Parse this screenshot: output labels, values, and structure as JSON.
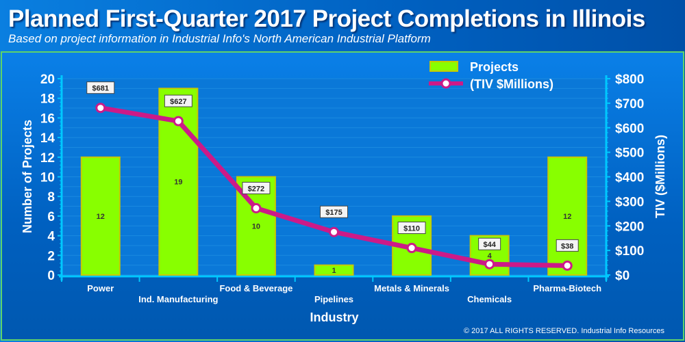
{
  "header": {
    "title": "Planned First-Quarter 2017 Project Completions in Illinois",
    "subtitle": "Based on project information in Industrial Info's North American Industrial Platform"
  },
  "footer": {
    "copyright": "© 2017 ALL RIGHTS RESERVED. Industrial Info Resources"
  },
  "colors": {
    "bar": "#88ff00",
    "bar_border": "#c8c800",
    "line": "#cc1a88",
    "background": "#0060c0",
    "grid": "#1a8ae0"
  },
  "chart_data": {
    "type": "bar+line",
    "xlabel": "Industry",
    "ylabel": "Number of Projects",
    "y2label": "TIV ($Millions)",
    "ylim": [
      0,
      20
    ],
    "y2lim": [
      0,
      800
    ],
    "yticks": [
      "0",
      "2",
      "4",
      "6",
      "8",
      "10",
      "12",
      "14",
      "16",
      "18",
      "20"
    ],
    "y2ticks": [
      "$0",
      "$100",
      "$200",
      "$300",
      "$400",
      "$500",
      "$600",
      "$700",
      "$800"
    ],
    "categories": [
      "Power",
      "Ind. Manufacturing",
      "Food & Beverage",
      "Pipelines",
      "Metals & Minerals",
      "Chemicals",
      "Pharma-Biotech"
    ],
    "legend": {
      "placement": "top-right",
      "entries": [
        "Projects",
        "(TIV $Millions)"
      ]
    },
    "series": [
      {
        "name": "Projects",
        "type": "bar",
        "axis": "left",
        "values": [
          12,
          19,
          10,
          1,
          6,
          4,
          12
        ],
        "labels": [
          "12",
          "19",
          "10",
          "1",
          "6",
          "4",
          "12"
        ]
      },
      {
        "name": "(TIV $Millions)",
        "type": "line",
        "axis": "right",
        "values": [
          681,
          627,
          272,
          175,
          110,
          44,
          38
        ],
        "labels": [
          "$681",
          "$627",
          "$272",
          "$175",
          "$110",
          "$44",
          "$38"
        ]
      }
    ]
  }
}
